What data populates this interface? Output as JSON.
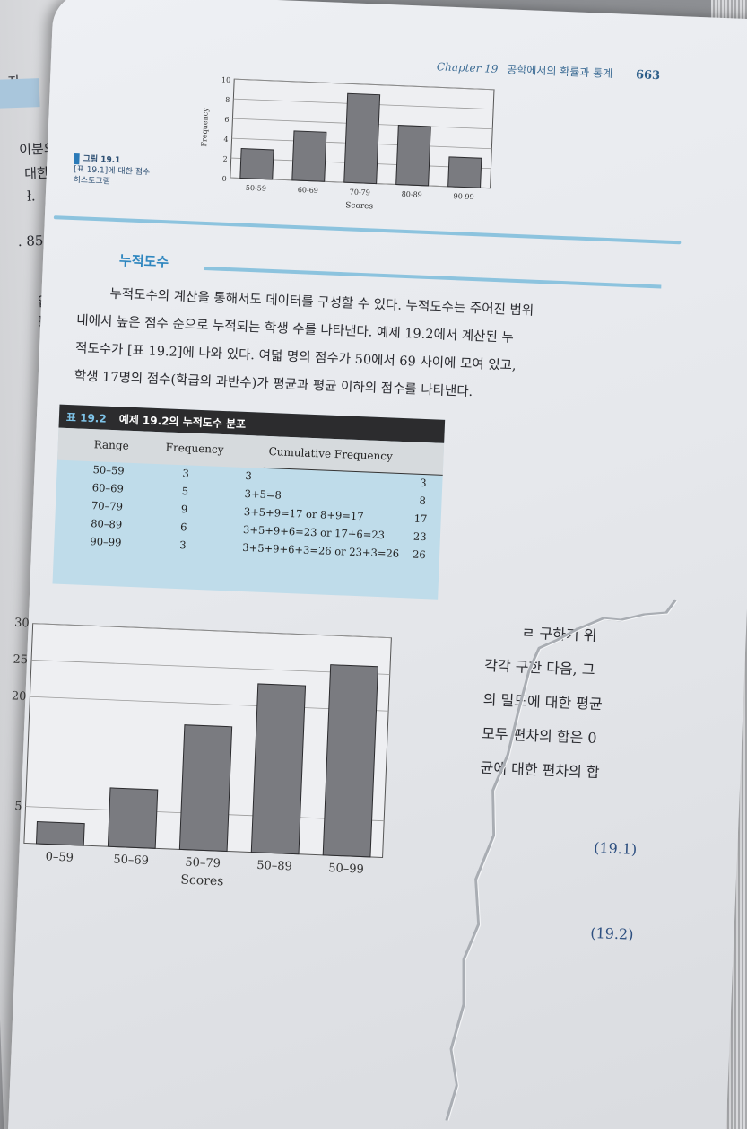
{
  "left_page": {
    "fragments": [
      "자.",
      "이분의 점",
      "대한 몇",
      "ł.",
      ". 85,",
      "없",
      "ł"
    ]
  },
  "header": {
    "chapter": "Chapter 19",
    "chapter_title": "공학에서의 확률과 통계",
    "page_number": "663"
  },
  "figure_19_1": {
    "label": "그림 19.1",
    "caption": "[표 19.1]에 대한 점수 히스토그램",
    "chart_data": {
      "type": "bar",
      "categories": [
        "50-59",
        "60-69",
        "70-79",
        "80-89",
        "90-99"
      ],
      "values": [
        3,
        5,
        9,
        6,
        3
      ],
      "xlabel": "Scores",
      "ylabel": "Frequency",
      "ylim": [
        0,
        10
      ],
      "yticks": [
        "0",
        "2",
        "4",
        "6",
        "8",
        "10"
      ],
      "grid": true
    }
  },
  "section": {
    "title": "누적도수"
  },
  "paragraph": [
    "누적도수의 계산을 통해서도 데이터를 구성할 수 있다. 누적도수는 주어진 범위",
    "내에서 높은 점수 순으로 누적되는 학생 수를 나타낸다. 예제 19.2에서 계산된 누",
    "적도수가 [표 19.2]에 나와 있다. 여덟 명의 점수가 50에서 69 사이에 모여 있고,",
    "학생 17명의 점수(학급의 과반수)가 평균과 평균 이하의 점수를 나타낸다."
  ],
  "table_19_2": {
    "label": "표 19.2",
    "title": "예제 19.2의 누적도수 분포",
    "headers": [
      "Range",
      "Frequency",
      "Cumulative Frequency"
    ],
    "rows": [
      {
        "range": "50–59",
        "frequency": "3",
        "expr": "3",
        "cum": "3"
      },
      {
        "range": "60–69",
        "frequency": "5",
        "expr": "3+5=8",
        "cum": "8"
      },
      {
        "range": "70–79",
        "frequency": "9",
        "expr": "3+5+9=17 or 8+9=17",
        "cum": "17"
      },
      {
        "range": "80–89",
        "frequency": "6",
        "expr": "3+5+9+6=23 or 17+6=23",
        "cum": "23"
      },
      {
        "range": "90–99",
        "frequency": "3",
        "expr": "3+5+9+6+3=26 or 23+3=26",
        "cum": "26"
      }
    ]
  },
  "figure_bottom": {
    "chart_data": {
      "type": "bar",
      "categories": [
        "0–59",
        "50–69",
        "50–79",
        "50–89",
        "50–99"
      ],
      "values": [
        3,
        8,
        17,
        23,
        26
      ],
      "xlabel": "Scores",
      "ylim": [
        0,
        30
      ],
      "yticks": [
        "5",
        "20",
        "25",
        "30"
      ],
      "grid": true
    }
  },
  "right_text": [
    "ㄹ 구하기 위",
    "각각 구한 다음, 그",
    "의 밀도에 대한 평균",
    "모두 편차의 합은 0",
    "균에 대한 편차의 합"
  ],
  "equations": [
    "(19.1)",
    "(19.2)"
  ]
}
